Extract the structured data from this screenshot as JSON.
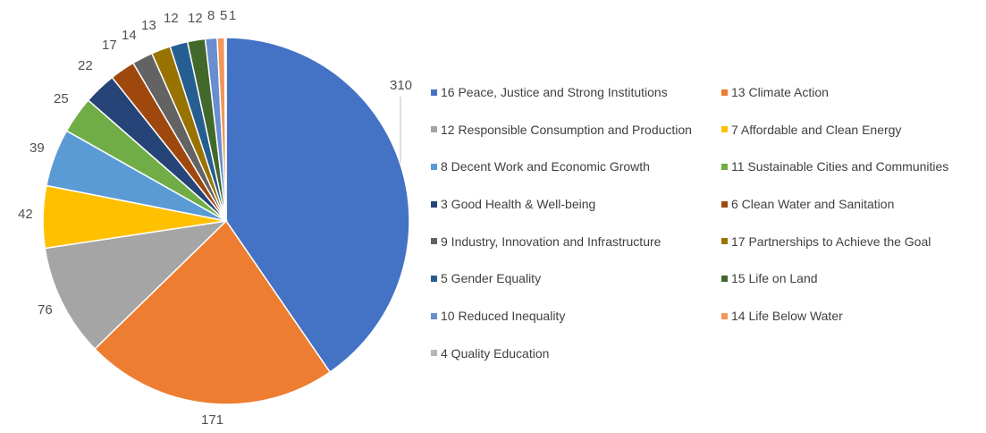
{
  "chart_data": {
    "type": "pie",
    "title": "",
    "legend_position": "right",
    "data_labels": true,
    "slices": [
      {
        "label": "16 Peace, Justice and Strong Institutions",
        "value": 310,
        "color": "#4472C4"
      },
      {
        "label": "13 Climate Action",
        "value": 171,
        "color": "#ED7D31"
      },
      {
        "label": "12 Responsible Consumption and Production",
        "value": 76,
        "color": "#A5A5A5"
      },
      {
        "label": "7 Affordable and Clean Energy",
        "value": 42,
        "color": "#FFC000"
      },
      {
        "label": "8 Decent Work and Economic Growth",
        "value": 39,
        "color": "#5B9BD5"
      },
      {
        "label": "11 Sustainable Cities and Communities",
        "value": 25,
        "color": "#70AD47"
      },
      {
        "label": "3 Good Health & Well-being",
        "value": 22,
        "color": "#264478"
      },
      {
        "label": "6 Clean Water and Sanitation",
        "value": 17,
        "color": "#9E480E"
      },
      {
        "label": "9 Industry, Innovation and Infrastructure",
        "value": 14,
        "color": "#636363"
      },
      {
        "label": "17 Partnerships to Achieve the Goal",
        "value": 13,
        "color": "#997300"
      },
      {
        "label": "5 Gender Equality",
        "value": 12,
        "color": "#255E91"
      },
      {
        "label": "15 Life on Land",
        "value": 12,
        "color": "#43682B"
      },
      {
        "label": "10 Reduced Inequality",
        "value": 8,
        "color": "#698ED0"
      },
      {
        "label": "14 Life Below Water",
        "value": 5,
        "color": "#F1975A"
      },
      {
        "label": "4 Quality Education",
        "value": 1,
        "color": "#B7B7B7"
      }
    ]
  }
}
